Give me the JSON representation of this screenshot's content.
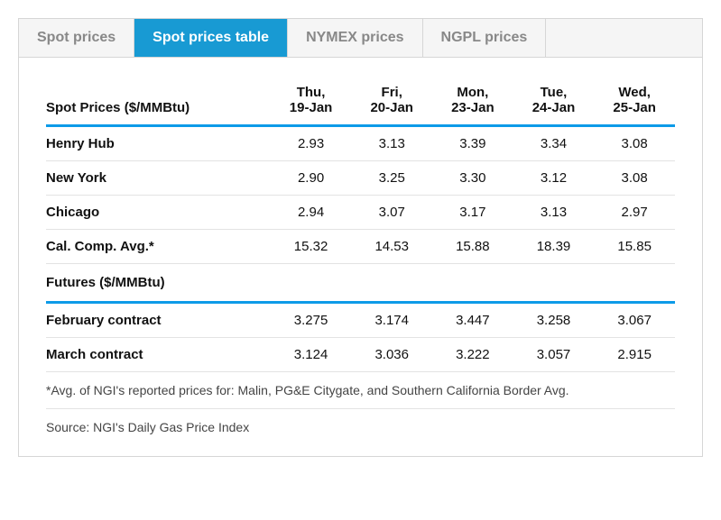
{
  "tabs": [
    {
      "label": "Spot prices",
      "active": false
    },
    {
      "label": "Spot prices table",
      "active": true
    },
    {
      "label": "NYMEX prices",
      "active": false
    },
    {
      "label": "NGPL prices",
      "active": false
    }
  ],
  "columns": [
    "Spot Prices ($/MMBtu)",
    "Thu,\n19-Jan",
    "Fri,\n20-Jan",
    "Mon,\n23-Jan",
    "Tue,\n24-Jan",
    "Wed,\n25-Jan"
  ],
  "spot_rows": [
    {
      "label": "Henry Hub",
      "values": [
        "2.93",
        "3.13",
        "3.39",
        "3.34",
        "3.08"
      ]
    },
    {
      "label": "New York",
      "values": [
        "2.90",
        "3.25",
        "3.30",
        "3.12",
        "3.08"
      ]
    },
    {
      "label": "Chicago",
      "values": [
        "2.94",
        "3.07",
        "3.17",
        "3.13",
        "2.97"
      ]
    },
    {
      "label": "Cal. Comp. Avg.*",
      "values": [
        "15.32",
        "14.53",
        "15.88",
        "18.39",
        "15.85"
      ]
    }
  ],
  "futures_header": "Futures ($/MMBtu)",
  "futures_rows": [
    {
      "label": "February contract",
      "values": [
        "3.275",
        "3.174",
        "3.447",
        "3.258",
        "3.067"
      ]
    },
    {
      "label": "March contract",
      "values": [
        "3.124",
        "3.036",
        "3.222",
        "3.057",
        "2.915"
      ]
    }
  ],
  "footnote": "*Avg. of NGI's reported prices for: Malin, PG&E Citygate, and Southern California Border Avg.",
  "source": "Source: NGI's Daily Gas Price Index",
  "colors": {
    "tab_active_bg": "#189ad3",
    "tab_active_fg": "#ffffff",
    "tab_inactive_fg": "#888888",
    "divider": "#0d9be8",
    "row_border": "#e3e3e3",
    "container_border": "#d6d6d6"
  }
}
